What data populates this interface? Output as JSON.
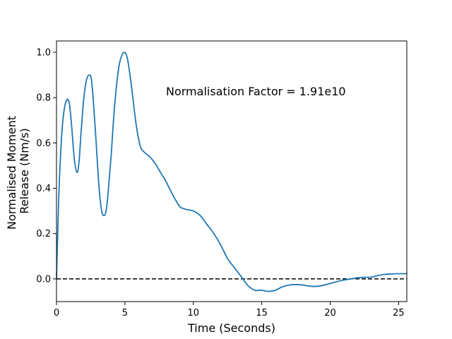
{
  "chart_data": {
    "type": "line",
    "xlabel": "Time (Seconds)",
    "ylabel_lines": [
      "Normalised Moment",
      "Release (Nm/s)"
    ],
    "annotation": {
      "text": "Normalisation Factor = 1.91e10",
      "x": 8.0,
      "y": 0.81
    },
    "xlim": [
      0,
      25.6
    ],
    "ylim": [
      -0.1,
      1.05
    ],
    "xticks": [
      0,
      5,
      10,
      15,
      20,
      25
    ],
    "xtick_labels": [
      "0",
      "5",
      "10",
      "15",
      "20",
      "25"
    ],
    "yticks": [
      0.0,
      0.2,
      0.4,
      0.6,
      0.8,
      1.0
    ],
    "ytick_labels": [
      "0.0",
      "0.2",
      "0.4",
      "0.6",
      "0.8",
      "1.0"
    ],
    "grid": false,
    "baseline": {
      "y": 0,
      "style": "dashed",
      "color": "#000000"
    },
    "series": [
      {
        "color": "#1f77b4",
        "x": [
          0,
          0.15,
          0.3,
          0.45,
          0.6,
          0.75,
          0.85,
          0.95,
          1.1,
          1.3,
          1.5,
          1.65,
          1.8,
          2.0,
          2.2,
          2.4,
          2.55,
          2.7,
          2.9,
          3.1,
          3.3,
          3.5,
          3.65,
          3.8,
          4.0,
          4.2,
          4.4,
          4.6,
          4.8,
          4.95,
          5.1,
          5.25,
          5.5,
          5.8,
          6.1,
          6.4,
          6.8,
          7.2,
          7.6,
          8.0,
          8.5,
          9.0,
          9.3,
          9.6,
          10.0,
          10.5,
          11.0,
          11.5,
          12.0,
          12.5,
          13.0,
          13.5,
          14.0,
          14.5,
          15.0,
          15.5,
          16.0,
          16.5,
          17.0,
          17.5,
          18.0,
          18.5,
          19.0,
          19.5,
          20.0,
          20.5,
          21.0,
          21.5,
          22.0,
          22.5,
          23.0,
          23.5,
          24.0,
          24.5,
          25.0,
          25.6
        ],
        "y": [
          0.0,
          0.33,
          0.55,
          0.69,
          0.76,
          0.79,
          0.79,
          0.77,
          0.68,
          0.53,
          0.47,
          0.52,
          0.65,
          0.8,
          0.88,
          0.9,
          0.88,
          0.78,
          0.6,
          0.41,
          0.3,
          0.28,
          0.31,
          0.4,
          0.55,
          0.73,
          0.86,
          0.95,
          0.99,
          1.0,
          0.99,
          0.95,
          0.84,
          0.69,
          0.59,
          0.56,
          0.54,
          0.51,
          0.47,
          0.43,
          0.37,
          0.32,
          0.31,
          0.305,
          0.3,
          0.28,
          0.24,
          0.2,
          0.15,
          0.09,
          0.05,
          0.01,
          -0.03,
          -0.05,
          -0.05,
          -0.055,
          -0.05,
          -0.035,
          -0.027,
          -0.025,
          -0.027,
          -0.032,
          -0.033,
          -0.028,
          -0.02,
          -0.012,
          -0.005,
          0.0,
          0.005,
          0.007,
          0.008,
          0.015,
          0.02,
          0.022,
          0.023,
          0.023
        ]
      }
    ]
  }
}
